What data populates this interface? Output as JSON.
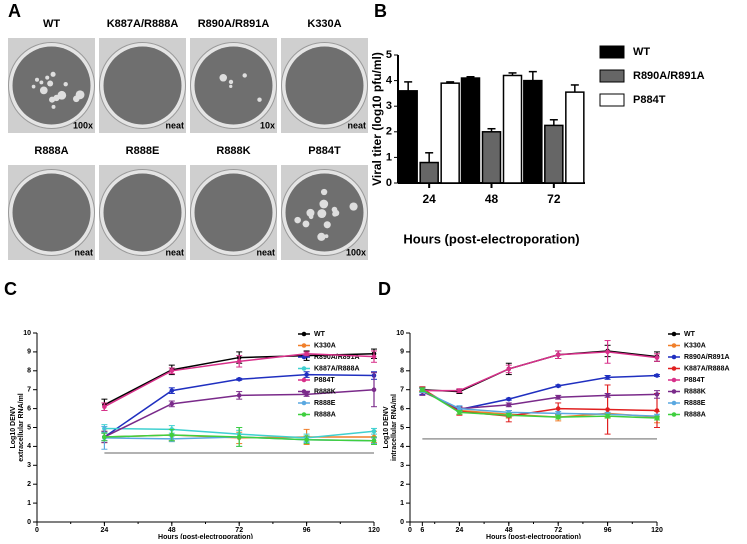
{
  "panel_letters": [
    "A",
    "B",
    "C",
    "D"
  ],
  "plaque_panel": {
    "plates": [
      {
        "label": "WT",
        "dilution": "100x"
      },
      {
        "label": "K887A/R888A",
        "dilution": "neat"
      },
      {
        "label": "R890A/R891A",
        "dilution": "10x"
      },
      {
        "label": "K330A",
        "dilution": "neat"
      },
      {
        "label": "R888A",
        "dilution": "neat"
      },
      {
        "label": "R888E",
        "dilution": "neat"
      },
      {
        "label": "R888K",
        "dilution": "neat"
      },
      {
        "label": "P884T",
        "dilution": "100x"
      }
    ]
  },
  "chart_data": [
    {
      "type": "bar",
      "x_label": "Hours (post-electroporation)",
      "y_label": "Viral titer (log10 pfu/ml)",
      "categories": [
        "24",
        "48",
        "72"
      ],
      "ylim": [
        0,
        5
      ],
      "yticks": [
        0,
        1,
        2,
        3,
        4,
        5
      ],
      "series": [
        {
          "name": "WT",
          "color": "#000000",
          "values": [
            3.6,
            4.1,
            4.0
          ],
          "errors": [
            0.35,
            0.05,
            0.35
          ]
        },
        {
          "name": "R890A/R891A",
          "color": "#666666",
          "values": [
            0.8,
            2.0,
            2.25
          ],
          "errors": [
            0.38,
            0.12,
            0.22
          ]
        },
        {
          "name": "P884T",
          "color": "#ffffff",
          "values": [
            3.9,
            4.2,
            3.55
          ],
          "errors": [
            0.05,
            0.1,
            0.28
          ]
        }
      ]
    },
    {
      "type": "line",
      "x_label": "Hours (post-electroporation)",
      "y_label": [
        "Log10 DENV",
        "extracellular RNA/ml"
      ],
      "x": [
        24,
        48,
        72,
        96,
        120
      ],
      "xlim": [
        0,
        120
      ],
      "xticks": [
        0,
        24,
        48,
        72,
        96,
        120
      ],
      "ylim": [
        0,
        10
      ],
      "yticks": [
        0,
        1,
        2,
        3,
        4,
        5,
        6,
        7,
        8,
        9,
        10
      ],
      "reference_line": {
        "y": 3.65,
        "x": [
          24,
          120
        ]
      },
      "series": [
        {
          "name": "WT",
          "color": "#000000",
          "values": [
            6.2,
            8.05,
            8.7,
            8.8,
            8.9
          ],
          "errors": [
            0.3,
            0.25,
            0.3,
            0.25,
            0.25
          ]
        },
        {
          "name": "K330A",
          "color": "#f07f2a",
          "values": [
            4.5,
            4.6,
            4.45,
            4.5,
            4.5
          ],
          "errors": [
            0.3,
            0.3,
            0.3,
            0.4,
            0.3
          ]
        },
        {
          "name": "R890A/R891A",
          "color": "#1f2fc0",
          "values": [
            4.5,
            6.95,
            7.55,
            7.8,
            7.75
          ],
          "errors": [
            0.2,
            0.15,
            0.05,
            0.15,
            0.2
          ]
        },
        {
          "name": "K887A/R888A",
          "color": "#3fd0d0",
          "values": [
            4.95,
            4.9,
            4.65,
            4.45,
            4.8
          ],
          "errors": [
            0.2,
            0.2,
            0.2,
            0.2,
            0.15
          ]
        },
        {
          "name": "P884T",
          "color": "#d8308a",
          "values": [
            6.1,
            8.0,
            8.5,
            8.9,
            8.75
          ],
          "errors": [
            0.2,
            0.15,
            0.3,
            0.1,
            0.3
          ]
        },
        {
          "name": "R888K",
          "color": "#7a2a8a",
          "values": [
            4.5,
            6.25,
            6.7,
            6.75,
            7.0
          ],
          "errors": [
            0.3,
            0.15,
            0.2,
            0.1,
            0.9
          ]
        },
        {
          "name": "R888E",
          "color": "#5aa8e0",
          "values": [
            4.45,
            4.4,
            4.5,
            4.35,
            4.3
          ],
          "errors": [
            0.6,
            0.15,
            0.5,
            0.15,
            0.15
          ]
        },
        {
          "name": "R888A",
          "color": "#3fcf3f",
          "values": [
            4.5,
            4.6,
            4.5,
            4.35,
            4.3
          ],
          "errors": [
            0.2,
            0.3,
            0.5,
            0.2,
            0.2
          ]
        }
      ]
    },
    {
      "type": "line",
      "x_label": "Hours (post-electroporation)",
      "y_label": [
        "Log10 DENV",
        "intracellular RNA/ml"
      ],
      "x": [
        6,
        24,
        48,
        72,
        96,
        120
      ],
      "xlim": [
        0,
        120
      ],
      "xticks": [
        0,
        6,
        24,
        48,
        72,
        96,
        120
      ],
      "ylim": [
        0,
        10
      ],
      "yticks": [
        0,
        1,
        2,
        3,
        4,
        5,
        6,
        7,
        8,
        9,
        10
      ],
      "reference_line": {
        "y": 4.4,
        "x": [
          6,
          120
        ]
      },
      "series": [
        {
          "name": "WT",
          "color": "#000000",
          "values": [
            7.0,
            6.9,
            8.1,
            8.85,
            9.05,
            8.75
          ],
          "errors": [
            0.1,
            0.1,
            0.3,
            0.2,
            0.3,
            0.25
          ]
        },
        {
          "name": "K330A",
          "color": "#f07f2a",
          "values": [
            7.0,
            5.9,
            5.7,
            5.55,
            5.75,
            5.55
          ],
          "errors": [
            0.1,
            0.2,
            0.2,
            0.2,
            0.2,
            0.3
          ]
        },
        {
          "name": "R890A/R891A",
          "color": "#1f2fc0",
          "values": [
            6.95,
            5.95,
            6.5,
            7.2,
            7.65,
            7.75
          ],
          "errors": [
            0.2,
            0.1,
            0.05,
            0.05,
            0.1,
            0.05
          ]
        },
        {
          "name": "K887A/R888A",
          "color": "#e02020",
          "values": [
            7.05,
            5.85,
            5.6,
            6.0,
            5.95,
            5.9
          ],
          "errors": [
            0.1,
            0.2,
            0.3,
            0.3,
            1.3,
            0.9
          ]
        },
        {
          "name": "P884T",
          "color": "#d8308a",
          "values": [
            6.95,
            6.95,
            8.1,
            8.85,
            9.0,
            8.7
          ],
          "errors": [
            0.1,
            0.1,
            0.2,
            0.2,
            0.6,
            0.2
          ]
        },
        {
          "name": "R888K",
          "color": "#7a2a8a",
          "values": [
            6.9,
            6.0,
            6.2,
            6.6,
            6.7,
            6.75
          ],
          "errors": [
            0.2,
            0.1,
            0.1,
            0.1,
            0.1,
            0.2
          ]
        },
        {
          "name": "R888E",
          "color": "#5aa8e0",
          "values": [
            6.95,
            6.0,
            5.8,
            5.75,
            5.7,
            5.6
          ],
          "errors": [
            0.1,
            0.15,
            0.1,
            0.1,
            0.1,
            0.1
          ]
        },
        {
          "name": "R888A",
          "color": "#3fcf3f",
          "values": [
            7.0,
            5.8,
            5.65,
            5.55,
            5.6,
            5.5
          ],
          "errors": [
            0.1,
            0.1,
            0.1,
            0.1,
            0.1,
            0.1
          ]
        }
      ]
    }
  ]
}
